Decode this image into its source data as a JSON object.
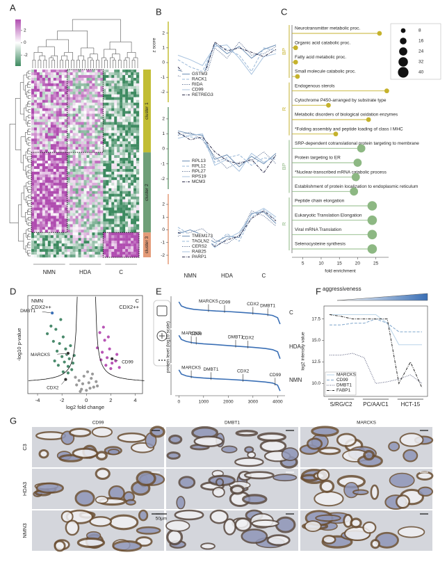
{
  "chart_data": [
    {
      "panel": "A",
      "type": "heatmap",
      "colorbar_ticks": [
        2,
        0,
        -2
      ],
      "clim": [
        -3.8,
        3.8
      ],
      "colors": [
        "#3d8a60",
        "#ffffff",
        "#b04db0"
      ],
      "x_groups": [
        "NMN",
        "HDA",
        "C"
      ],
      "clusters": [
        "cluster 1",
        "cluster 2",
        "cluster 3"
      ],
      "cluster_colors": [
        "#c2bd34",
        "#6f9f78",
        "#e49b78"
      ]
    },
    {
      "panel": "B",
      "type": "line",
      "ylabel": "z score",
      "categories": [
        null,
        null,
        null,
        null,
        null,
        null,
        null,
        null,
        null
      ],
      "ylim": [
        -2.6,
        2.6
      ],
      "yticks": [
        -2,
        -1,
        0,
        1,
        2
      ],
      "axis_color": "#c2bd34",
      "legend": "lower center",
      "series": [
        {
          "name": "GSTM3",
          "color": "#6d8fb5",
          "style": "solid",
          "values": [
            -0.5,
            -0.8,
            -1.0,
            1.3,
            0.6,
            1.1,
            0.3,
            0.9,
            1.2
          ]
        },
        {
          "name": "RACK1",
          "color": "#9ab8d8",
          "style": "dashed",
          "values": [
            0.2,
            -0.3,
            -0.6,
            1.2,
            0.9,
            0.5,
            -0.6,
            1.0,
            0.8
          ]
        },
        {
          "name": "RIDA",
          "color": "#4a5f86",
          "style": "dotted",
          "values": [
            -0.9,
            -1.1,
            -1.7,
            1.0,
            0.3,
            1.4,
            0.5,
            0.6,
            1.1
          ]
        },
        {
          "name": "CD99",
          "color": "#a8c3df",
          "style": "solid",
          "values": [
            0.5,
            0.2,
            -0.2,
            1.1,
            1.2,
            0.3,
            -0.8,
            0.4,
            0.6
          ]
        },
        {
          "name": "RETREG3",
          "color": "#2b2b4a",
          "style": "dashdot",
          "values": [
            -0.3,
            -1.2,
            -1.3,
            1.4,
            0.8,
            1.0,
            0.7,
            0.4,
            0.9
          ]
        }
      ]
    },
    {
      "type": "line",
      "categories": [
        null,
        null,
        null,
        null,
        null,
        null,
        null,
        null,
        null
      ],
      "ylim": [
        -2.6,
        2.6
      ],
      "yticks": [
        -2,
        -1,
        0,
        1,
        2
      ],
      "axis_color": "#6f9f78",
      "legend": "lower center",
      "series": [
        {
          "name": "RPL13",
          "color": "#6d8fb5",
          "style": "solid",
          "values": [
            1.2,
            1.0,
            0.9,
            -0.7,
            -0.4,
            -1.2,
            -0.5,
            -1.0,
            -0.3
          ]
        },
        {
          "name": "RPL12",
          "color": "#9ab8d8",
          "style": "dashed",
          "values": [
            1.0,
            0.8,
            0.7,
            -0.9,
            -0.6,
            -0.4,
            -1.1,
            -0.6,
            -0.7
          ]
        },
        {
          "name": "RPL27",
          "color": "#4a5f86",
          "style": "dotted",
          "values": [
            0.9,
            1.1,
            0.6,
            -0.5,
            -1.3,
            -0.9,
            -0.8,
            -0.2,
            -1.0
          ]
        },
        {
          "name": "RPS19",
          "color": "#a8c3df",
          "style": "solid",
          "values": [
            0.7,
            0.9,
            1.0,
            -1.1,
            -0.7,
            -1.5,
            -0.3,
            -0.9,
            -0.5
          ]
        },
        {
          "name": "MCM3",
          "color": "#2b2b4a",
          "style": "dashdot",
          "values": [
            1.1,
            0.6,
            0.8,
            -0.2,
            -0.8,
            -1.0,
            -0.7,
            -1.6,
            -0.4
          ]
        }
      ]
    },
    {
      "type": "line",
      "categories": [
        null,
        null,
        null,
        null,
        null,
        null,
        null,
        null,
        null
      ],
      "x_groups": [
        "NMN",
        "HDA",
        "C"
      ],
      "ylim": [
        -2.6,
        2.6
      ],
      "yticks": [
        -2,
        -1,
        0,
        1,
        2
      ],
      "axis_color": "#e49b78",
      "legend": "lower center",
      "series": [
        {
          "name": "TMEM173",
          "color": "#6d8fb5",
          "style": "solid",
          "values": [
            -0.3,
            0.0,
            -0.4,
            -1.0,
            -0.5,
            -0.6,
            1.3,
            1.4,
            0.5
          ]
        },
        {
          "name": "TAGLN2",
          "color": "#9ab8d8",
          "style": "dashed",
          "values": [
            0.2,
            -0.4,
            -0.7,
            -1.2,
            -0.3,
            -0.9,
            1.0,
            1.6,
            0.8
          ]
        },
        {
          "name": "CERS2",
          "color": "#4a5f86",
          "style": "dotted",
          "values": [
            -0.5,
            -0.2,
            0.1,
            -0.8,
            -1.1,
            -0.4,
            1.5,
            1.1,
            0.3
          ]
        },
        {
          "name": "RAB25",
          "color": "#a8c3df",
          "style": "solid",
          "values": [
            0.0,
            -0.6,
            -0.3,
            -1.4,
            -0.7,
            -0.2,
            1.2,
            1.7,
            1.0
          ]
        },
        {
          "name": "PARP1",
          "color": "#2b2b4a",
          "style": "dashdot",
          "values": [
            -0.2,
            -0.5,
            -0.6,
            -1.3,
            -0.8,
            -0.5,
            0.9,
            1.5,
            0.7
          ]
        }
      ]
    },
    {
      "panel": "C",
      "type": "lollipop",
      "xlabel": "fold enrichment",
      "xlim": [
        2,
        28.5
      ],
      "xticks": [
        5,
        10,
        15,
        20,
        25
      ],
      "size_legend": [
        8,
        16,
        24,
        32,
        40
      ],
      "categories": [
        "Neurotransmitter metabolic proc.",
        "Organic acid catabolic proc.",
        "Fatty acid metabolic proc.",
        "Small molecule catabolic proc.",
        "Endogenous sterols",
        "Cytochrome P450-arranged by substrate type",
        "Metabolic disorders of biological oxidation enzymes",
        "*Folding assembly and peptide loading of class I MHC",
        "SRP-dependent cotranslational protein targeting to membrane",
        "Protein targeting to ER",
        "*Nuclear-transcribed mRNA catabolic process",
        "Establishment of protein localization to endoplasmic reticulum",
        "Peptide chain elongation",
        "Eukaryotic Translation Elongation",
        "Viral mRNA Translation",
        "Selenocysteine synthesis"
      ],
      "category_groups": [
        "BP",
        "BP",
        "BP",
        "BP",
        "R",
        "R",
        "R",
        "R",
        "BP",
        "BP",
        "BP",
        "BP",
        "R",
        "R",
        "R",
        "R"
      ],
      "values": [
        26,
        3,
        3,
        3.5,
        28,
        12,
        23,
        14,
        21,
        20,
        19.5,
        19,
        24,
        24,
        24,
        24
      ],
      "sizes": [
        8,
        8,
        8,
        8,
        8,
        8,
        8,
        8,
        24,
        24,
        24,
        24,
        32,
        32,
        32,
        32
      ],
      "colors": [
        "#c5b22c",
        "#c5b22c",
        "#c5b22c",
        "#c5b22c",
        "#c5b22c",
        "#c5b22c",
        "#c5b22c",
        "#c5b22c",
        "#8db883",
        "#8db883",
        "#8db883",
        "#8db883",
        "#8db883",
        "#8db883",
        "#8db883",
        "#8db883"
      ]
    },
    {
      "panel": "D",
      "type": "scatter",
      "xlabel": "log2 fold change",
      "ylabel": "-log10 p-value",
      "xlim": [
        -4.8,
        4.6
      ],
      "ylim": [
        0,
        9
      ],
      "xticks": [
        -4,
        -2,
        0,
        2,
        4
      ],
      "left_label": [
        "NMN",
        "CDX2++"
      ],
      "right_label": [
        "C",
        "CDX2++"
      ],
      "series": [
        {
          "color": "#4a8a6c",
          "x": [
            -3.2,
            -2.9,
            -2.7,
            -2.5,
            -2.4,
            -2.2,
            -2.1,
            -2.0,
            -1.9,
            -1.8,
            -1.7,
            -1.6,
            -1.5,
            -1.4,
            -1.3,
            -1.2,
            -1.1,
            -2.6,
            -2.3,
            -1.9,
            -1.5,
            -1.0
          ],
          "y": [
            5.5,
            6.2,
            4.8,
            5.9,
            3.9,
            4.6,
            6.8,
            3.4,
            5.2,
            2.9,
            4.1,
            3.6,
            2.5,
            3.2,
            4.4,
            2.2,
            2.8,
            3.0,
            2.6,
            2.0,
            1.9,
            3.5
          ]
        },
        {
          "color": "#b855b5",
          "x": [
            0.9,
            1.1,
            1.3,
            1.5,
            1.7,
            1.9,
            2.1,
            2.4,
            2.7,
            1.2,
            1.6,
            2.0,
            1.4,
            1.8,
            2.5
          ],
          "y": [
            4.2,
            5.6,
            3.8,
            4.9,
            3.3,
            4.1,
            2.8,
            3.0,
            2.4,
            3.1,
            2.6,
            2.3,
            6.1,
            5.2,
            3.6
          ]
        },
        {
          "color": "#9a9a9a",
          "x": [
            -0.8,
            -0.6,
            -0.4,
            -0.2,
            0,
            0.2,
            0.4,
            0.6,
            0.8,
            -0.5,
            0.1,
            0.5,
            -0.3,
            0.3,
            -0.9,
            0.9
          ],
          "y": [
            0.8,
            1.2,
            0.4,
            1.6,
            0.3,
            1.0,
            1.4,
            0.6,
            1.1,
            0.2,
            2.0,
            1.8,
            0.9,
            0.5,
            1.5,
            0.7
          ]
        }
      ],
      "point_labels": [
        {
          "label": "DMBT1",
          "x": -2.8,
          "y": 7.4
        },
        {
          "label": "MARCKS",
          "x": -1.5,
          "y": 3.7
        },
        {
          "label": "CDX2",
          "x": -1.7,
          "y": 1.3
        },
        {
          "label": "CD99",
          "x": 2.1,
          "y": 3.2
        }
      ]
    },
    {
      "panel": "E",
      "type": "line",
      "group_label": "C",
      "x": [
        0,
        100,
        300,
        600,
        1000,
        1500,
        2000,
        2500,
        3000,
        3500,
        3800,
        4000,
        4100
      ],
      "xlim": [
        -150,
        4300
      ],
      "ylim": [
        0,
        10
      ],
      "series": [
        {
          "color": "#3a6fb5",
          "style": "solid",
          "values": [
            9,
            7.5,
            6.8,
            6.3,
            6,
            5.7,
            5.5,
            5.2,
            4.9,
            4.5,
            4.1,
            3.3,
            1
          ]
        }
      ],
      "annotations": [
        {
          "label": "MARCKS",
          "x": 1200
        },
        {
          "label": "CD99",
          "x": 1850
        },
        {
          "label": "CDX2",
          "x": 3000
        },
        {
          "label": "DMBT1",
          "x": 3600
        }
      ]
    },
    {
      "type": "line",
      "group_label": "HDA",
      "ylabel": "protein level (log10 scale)",
      "x": [
        0,
        100,
        300,
        600,
        1000,
        1500,
        2000,
        2500,
        3000,
        3500,
        3800,
        4000,
        4100
      ],
      "xlim": [
        -150,
        4300
      ],
      "ylim": [
        0,
        10
      ],
      "series": [
        {
          "color": "#3a6fb5",
          "style": "solid",
          "values": [
            9,
            7.6,
            6.9,
            6.4,
            6.1,
            5.8,
            5.5,
            5.2,
            4.9,
            4.5,
            4.1,
            3.4,
            1
          ]
        }
      ],
      "annotations": [
        {
          "label": "MARCKS",
          "x": 500
        },
        {
          "label": "CD99",
          "x": 700
        },
        {
          "label": "DMBT1",
          "x": 2300
        },
        {
          "label": "CDX2",
          "x": 2800
        }
      ]
    },
    {
      "type": "line",
      "group_label": "NMN",
      "x": [
        0,
        100,
        300,
        600,
        1000,
        1500,
        2000,
        2500,
        3000,
        3500,
        3800,
        4000,
        4100
      ],
      "xlim": [
        -150,
        4300
      ],
      "ylim": [
        0,
        10
      ],
      "xticks": [
        0,
        1000,
        2000,
        3000,
        4000
      ],
      "series": [
        {
          "color": "#3a6fb5",
          "style": "solid",
          "values": [
            9,
            7.4,
            6.7,
            6.2,
            5.9,
            5.6,
            5.4,
            5.1,
            4.8,
            4.4,
            4.0,
            3.2,
            1
          ]
        }
      ],
      "annotations": [
        {
          "label": "MARCKS",
          "x": 500
        },
        {
          "label": "DMBT1",
          "x": 1300
        },
        {
          "label": "CDX2",
          "x": 2600
        },
        {
          "label": "CD99",
          "x": 3900
        }
      ]
    },
    {
      "panel": "F",
      "type": "line",
      "title": "aggressiveness",
      "ylabel": "log2 intensity value",
      "categories": [
        null,
        null,
        null,
        null,
        null,
        null,
        null,
        null,
        null
      ],
      "x_groups": [
        "S/RG/C2",
        "PC/AA/C1",
        "HCT-15"
      ],
      "ylim": [
        8.5,
        19
      ],
      "yticks": [
        {
          "value": 10,
          "label": "10.0"
        },
        {
          "value": 12.5,
          "label": "12.5"
        },
        {
          "value": 15,
          "label": "15.0"
        },
        {
          "value": 17.5,
          "label": "17.5"
        }
      ],
      "legend": "lower left",
      "series": [
        {
          "name": "MARCKS",
          "color": "#b8d3e8",
          "style": "solid",
          "values": [
            18,
            18,
            18,
            18,
            18,
            17,
            14.5,
            14.5,
            14.5
          ]
        },
        {
          "name": "CD99",
          "color": "#7fa6cc",
          "style": "dashed",
          "values": [
            16.8,
            16.8,
            17,
            17,
            17.5,
            17,
            16,
            16,
            16
          ]
        },
        {
          "name": "DMBT1",
          "color": "#555a7a",
          "style": "dotted",
          "values": [
            13.3,
            13.3,
            13.5,
            13,
            10,
            10.2,
            10.5,
            11,
            10
          ]
        },
        {
          "name": "FABP1",
          "color": "#222222",
          "style": "dashdot",
          "values": [
            18,
            17.8,
            17.5,
            17.5,
            17.5,
            17.5,
            10,
            12.5,
            9.5
          ]
        }
      ]
    }
  ],
  "micrographs": {
    "panel": "G",
    "columns": [
      "CD99",
      "DMBT1",
      "MARCKS"
    ],
    "rows": [
      "C3",
      "HDA3",
      "NMN3"
    ],
    "scale_bar": "50μm"
  }
}
